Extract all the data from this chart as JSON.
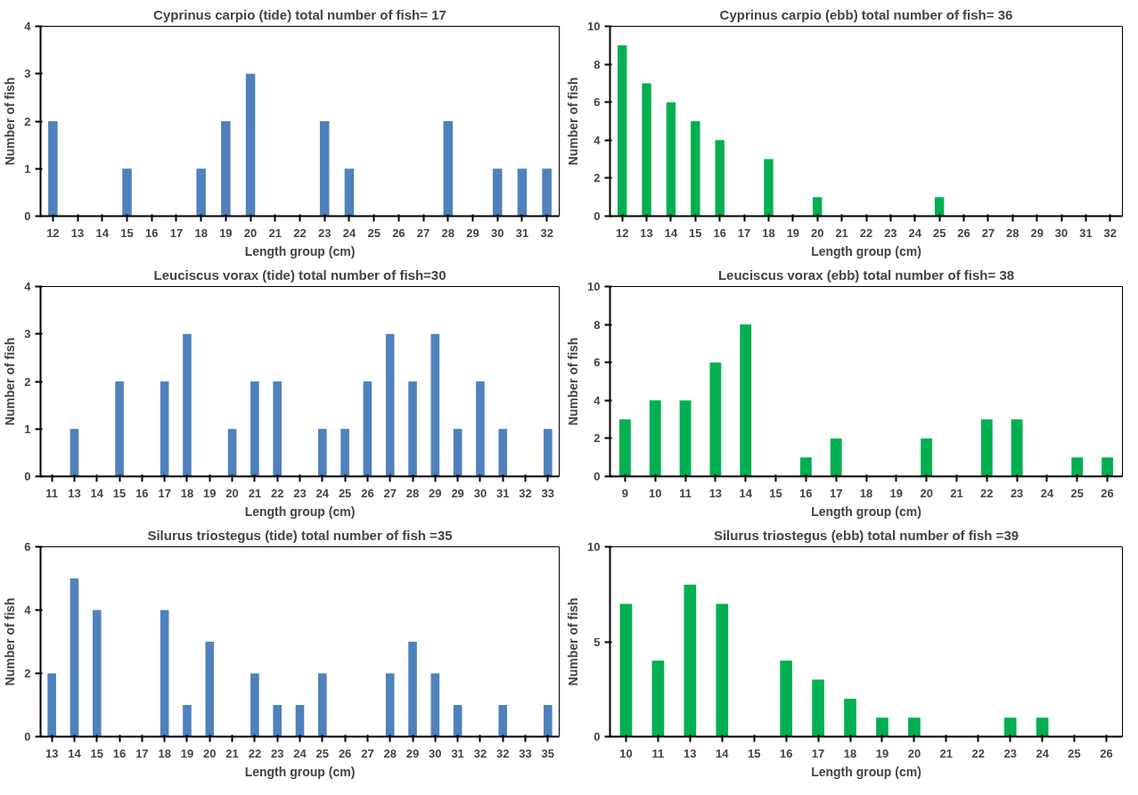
{
  "chart_data": [
    {
      "type": "bar",
      "title": "Cyprinus carpio (tide) total number of fish= 17",
      "xlabel": "Length group (cm)",
      "ylabel": "Number of fish",
      "categories": [
        "12",
        "13",
        "14",
        "15",
        "16",
        "17",
        "18",
        "19",
        "20",
        "21",
        "22",
        "23",
        "24",
        "25",
        "26",
        "27",
        "28",
        "29",
        "30",
        "31",
        "32"
      ],
      "values": [
        2,
        0,
        0,
        1,
        0,
        0,
        1,
        2,
        3,
        0,
        0,
        2,
        1,
        0,
        0,
        0,
        2,
        0,
        1,
        1,
        1
      ],
      "color": "#4f81bd",
      "ylim": [
        0,
        4
      ],
      "yticks": [
        0,
        1,
        2,
        3,
        4
      ]
    },
    {
      "type": "bar",
      "title": "Cyprinus carpio (ebb) total number of fish= 36",
      "xlabel": "Length group (cm)",
      "ylabel": "Number of fish",
      "categories": [
        "12",
        "13",
        "14",
        "15",
        "16",
        "17",
        "18",
        "19",
        "20",
        "21",
        "22",
        "23",
        "24",
        "25",
        "26",
        "27",
        "28",
        "29",
        "30",
        "31",
        "32"
      ],
      "values": [
        9,
        7,
        6,
        5,
        4,
        0,
        3,
        0,
        1,
        0,
        0,
        0,
        0,
        1,
        0,
        0,
        0,
        0,
        0,
        0,
        0
      ],
      "color": "#00b050",
      "ylim": [
        0,
        10
      ],
      "yticks": [
        0,
        2,
        4,
        6,
        8,
        10
      ]
    },
    {
      "type": "bar",
      "title": "Leuciscus vorax (tide) total number of fish=30",
      "xlabel": "Length group (cm)",
      "ylabel": "Number of fish",
      "categories": [
        "11",
        "13",
        "14",
        "15",
        "16",
        "17",
        "18",
        "19",
        "20",
        "21",
        "22",
        "23",
        "24",
        "25",
        "26",
        "27",
        "28",
        "29",
        "29",
        "30",
        "31",
        "32",
        "33"
      ],
      "values": [
        0,
        1,
        0,
        2,
        0,
        2,
        3,
        0,
        1,
        2,
        2,
        0,
        1,
        1,
        2,
        3,
        2,
        3,
        1,
        2,
        1,
        0,
        1
      ],
      "color": "#4f81bd",
      "ylim": [
        0,
        4
      ],
      "yticks": [
        0,
        1,
        2,
        3,
        4
      ]
    },
    {
      "type": "bar",
      "title": "Leuciscus vorax (ebb) total number of fish= 38",
      "xlabel": "Length group (cm)",
      "ylabel": "Number of fish",
      "categories": [
        "9",
        "10",
        "11",
        "13",
        "14",
        "15",
        "16",
        "17",
        "18",
        "19",
        "20",
        "21",
        "22",
        "23",
        "24",
        "25",
        "26"
      ],
      "values": [
        3,
        4,
        4,
        6,
        8,
        0,
        1,
        2,
        0,
        0,
        2,
        0,
        3,
        3,
        0,
        1,
        1
      ],
      "color": "#00b050",
      "ylim": [
        0,
        10
      ],
      "yticks": [
        0,
        2,
        4,
        6,
        8,
        10
      ]
    },
    {
      "type": "bar",
      "title": "Silurus triostegus (tide) total number of fish =35",
      "xlabel": "Length group (cm)",
      "ylabel": "Number of fish",
      "categories": [
        "13",
        "14",
        "15",
        "16",
        "17",
        "18",
        "19",
        "20",
        "21",
        "22",
        "23",
        "24",
        "25",
        "26",
        "27",
        "28",
        "29",
        "30",
        "31",
        "32",
        "32",
        "33",
        "35"
      ],
      "values": [
        2,
        5,
        4,
        0,
        0,
        4,
        1,
        3,
        0,
        2,
        1,
        1,
        2,
        0,
        0,
        2,
        3,
        2,
        1,
        0,
        1,
        0,
        1
      ],
      "color": "#4f81bd",
      "ylim": [
        0,
        6
      ],
      "yticks": [
        0,
        2,
        4,
        6
      ]
    },
    {
      "type": "bar",
      "title": "Silurus triostegus (ebb) total number of fish =39",
      "xlabel": "Length group (cm)",
      "ylabel": "Number of fish",
      "categories": [
        "10",
        "11",
        "13",
        "14",
        "15",
        "16",
        "17",
        "18",
        "19",
        "20",
        "21",
        "22",
        "23",
        "24",
        "25",
        "26"
      ],
      "values": [
        7,
        4,
        8,
        7,
        0,
        4,
        3,
        2,
        1,
        1,
        0,
        0,
        1,
        1,
        0,
        0
      ],
      "color": "#00b050",
      "ylim": [
        0,
        10
      ],
      "yticks": [
        0,
        5,
        10
      ]
    }
  ]
}
